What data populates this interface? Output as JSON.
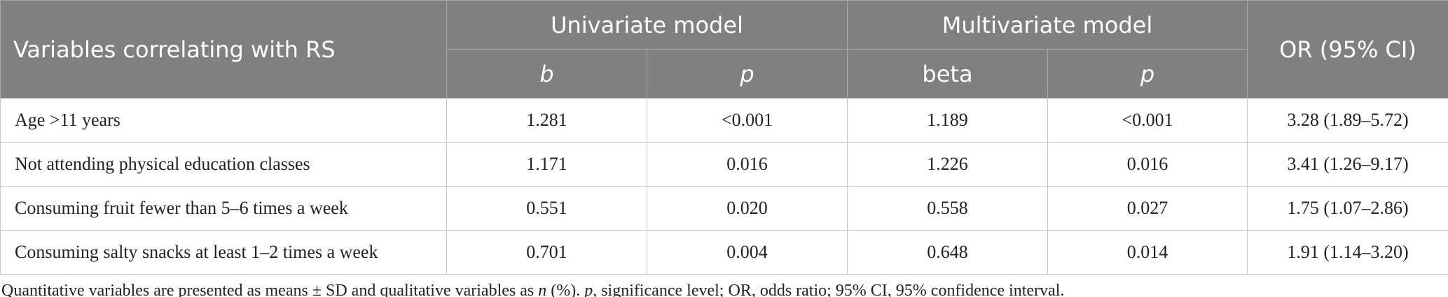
{
  "header": {
    "row_label": "Variables correlating with RS",
    "groups": [
      "Univariate model",
      "Multivariate model"
    ],
    "last": "OR (95% CI)",
    "subheaders": [
      "b",
      "p",
      "beta",
      "p"
    ]
  },
  "table": {
    "rows": [
      [
        "Age >11 years",
        "1.281",
        "<0.001",
        "1.189",
        "<0.001",
        "3.28 (1.89–5.72)"
      ],
      [
        "Not attending physical education classes",
        "1.171",
        "0.016",
        "1.226",
        "0.016",
        "3.41 (1.26–9.17)"
      ],
      [
        "Consuming fruit fewer than 5–6 times a week",
        "0.551",
        "0.020",
        "0.558",
        "0.027",
        "1.75 (1.07–2.86)"
      ],
      [
        "Consuming salty snacks at least 1–2 times a week",
        "0.701",
        "0.004",
        "0.648",
        "0.014",
        "1.91 (1.14–3.20)"
      ]
    ]
  },
  "footnote": [
    "Quantitative variables are presented as means ± SD and qualitative variables as ",
    "n",
    " (%). ",
    "p",
    ", significance level; OR, odds ratio; 95% CI, 95% confidence interval."
  ]
}
